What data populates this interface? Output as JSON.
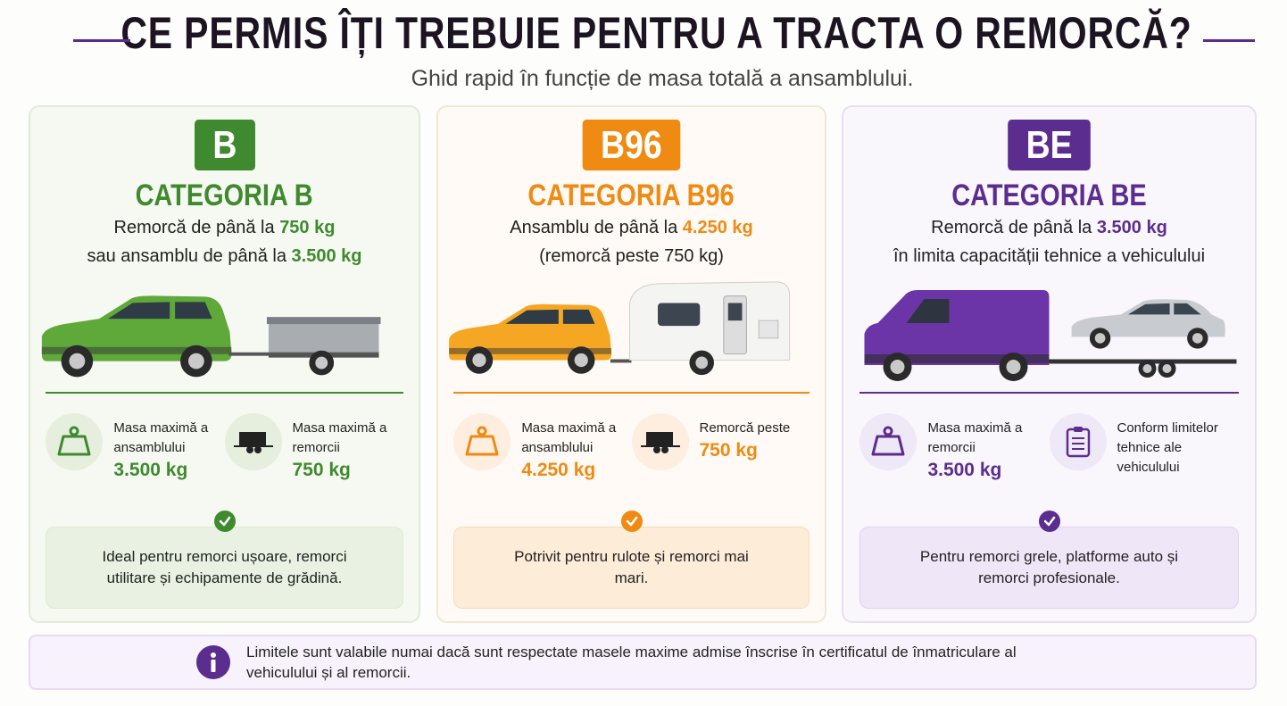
{
  "header": {
    "title": "CE PERMIS ÎȚI TREBUIE PENTRU A TRACTA O REMORCĂ?",
    "subtitle": "Ghid rapid în funcție de masa totală a ansamblului."
  },
  "cards": [
    {
      "badge": "B",
      "category": "CATEGORIA B",
      "color": "#3f8a2e",
      "description": [
        [
          {
            "text": "Remorcă de până la"
          },
          {
            "text": "750 kg",
            "highlight": true
          }
        ],
        [
          {
            "text": "sau ansamblu de până la"
          },
          {
            "text": "3.500 kg",
            "highlight": true
          }
        ]
      ],
      "stats": [
        {
          "label": "Masa maximă a ansamblului",
          "value": "3.500 kg"
        },
        {
          "label": "Masa maximă a remorcii",
          "value": "750 kg"
        }
      ],
      "note": "Ideal pentru remorci ușoare, remorci utilitare și echipamente de grădină."
    },
    {
      "badge": "B96",
      "category": "CATEGORIA B96",
      "color": "#ef8a12",
      "description": [
        [
          {
            "text": "Ansamblu de până la"
          },
          {
            "text": "4.250 kg",
            "highlight": true
          }
        ],
        [
          {
            "text": "(remorcă peste 750 kg)"
          }
        ]
      ],
      "stats": [
        {
          "label": "Masa maximă a ansamblului",
          "value": "4.250 kg"
        },
        {
          "label": "Remorcă peste",
          "value": "750 kg"
        }
      ],
      "note": "Potrivit pentru rulote și remorci mai mari."
    },
    {
      "badge": "BE",
      "category": "CATEGORIA BE",
      "color": "#5b2d8e",
      "description": [
        [
          {
            "text": "Remorcă de până la"
          },
          {
            "text": "3.500 kg",
            "highlight": true
          }
        ],
        [
          {
            "text": "în limita capacității tehnice a vehiculului"
          }
        ]
      ],
      "stats": [
        {
          "label": "Masa maximă a remorcii",
          "value": "3.500 kg"
        },
        {
          "label": "Conform limitelor tehnice ale vehiculului"
        }
      ],
      "note": "Pentru remorci grele, platforme auto și remorci profesionale."
    }
  ],
  "footer": {
    "text": "Limitele sunt valabile numai dacă sunt respectate masele maxime admise înscrise în certificatul de înmatriculare al vehiculului și al remorcii."
  }
}
